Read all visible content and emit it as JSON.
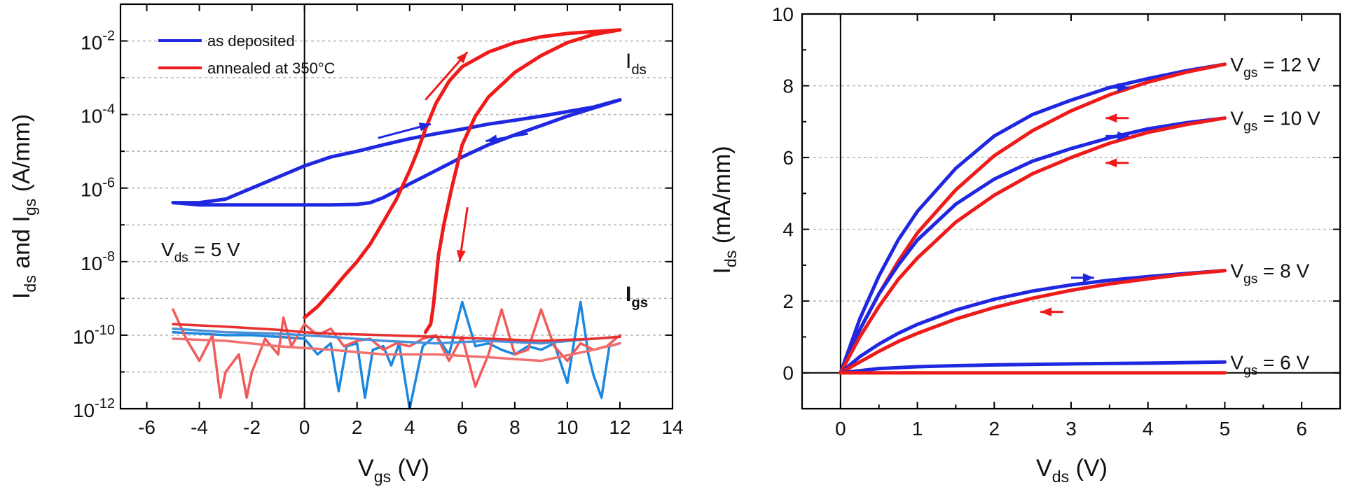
{
  "chart_data": [
    {
      "type": "line",
      "panel": "left",
      "x_label": {
        "main": "V",
        "sub": "gs",
        "unit": " (V)"
      },
      "y_label": {
        "p1": "I",
        "s1": "ds",
        "mid": " and I",
        "s2": "gs",
        "unit": " (A/mm)"
      },
      "y_scale": "log",
      "xlim": [
        -7,
        14
      ],
      "ylim": [
        1e-12,
        0.1
      ],
      "x_ticks": [
        -6,
        -4,
        -2,
        0,
        2,
        4,
        6,
        8,
        10,
        12,
        14
      ],
      "x_tick_labels": [
        "-6",
        "-4",
        "-2",
        "0",
        "2",
        "4",
        "6",
        "8",
        "10",
        "12",
        "14"
      ],
      "y_ticks_exp": [
        -12,
        -10,
        -8,
        -6,
        -4,
        -2
      ],
      "y_tick_labels": [
        "10-12",
        "10-10",
        "10-8",
        "10-6",
        "10-4",
        "10-2"
      ],
      "y_tick_base": "10",
      "y_tick_exps": [
        "-12",
        "-10",
        "-8",
        "-6",
        "-4",
        "-2"
      ],
      "grid": "horizontal dotted",
      "legend": {
        "placement": "top-left",
        "entries": [
          {
            "label": "as deposited",
            "color": "#1f28e0"
          },
          {
            "label": "annealed at 350°C",
            "color": "#ef1a1a"
          }
        ]
      },
      "annotations": {
        "vds": {
          "main": "V",
          "sub": "ds",
          "rest": " = 5 V"
        },
        "ids": {
          "main": "I",
          "sub": "ds"
        },
        "igs": {
          "main": "I",
          "sub": "gs"
        }
      },
      "series": [
        {
          "name": "as deposited",
          "role": "Ids forward",
          "color": "#1f28e0",
          "x": [
            -5,
            -4,
            -3,
            -2,
            -1,
            0,
            1,
            2,
            3,
            4,
            5,
            6,
            7,
            8,
            9,
            10,
            11,
            12
          ],
          "y": [
            4e-07,
            4e-07,
            5e-07,
            1e-06,
            2e-06,
            4e-06,
            7e-06,
            1e-05,
            1.5e-05,
            2.2e-05,
            3e-05,
            4e-05,
            5.5e-05,
            7e-05,
            9e-05,
            0.00012,
            0.00016,
            0.00025
          ]
        },
        {
          "name": "as deposited",
          "role": "Ids reverse",
          "color": "#1f28e0",
          "x": [
            12,
            11,
            10,
            9,
            8,
            7,
            6,
            5,
            4,
            3,
            2.5,
            2,
            1,
            0,
            -1,
            -2,
            -3,
            -4,
            -5
          ],
          "y": [
            0.00025,
            0.00015,
            9e-05,
            5e-05,
            2.8e-05,
            1.5e-05,
            7e-06,
            3e-06,
            1.3e-06,
            5.5e-07,
            4e-07,
            3.6e-07,
            3.5e-07,
            3.5e-07,
            3.5e-07,
            3.5e-07,
            3.5e-07,
            3.5e-07,
            4e-07
          ]
        },
        {
          "name": "annealed at 350°C",
          "role": "Ids forward",
          "color": "#ef1a1a",
          "x": [
            0,
            0.5,
            1,
            1.5,
            2,
            2.5,
            3,
            3.5,
            4,
            4.3,
            4.6,
            5,
            5.5,
            6,
            7,
            8,
            9,
            10,
            11,
            12
          ],
          "y": [
            3e-10,
            6e-10,
            1.5e-09,
            4e-09,
            1e-08,
            3e-08,
            1.2e-07,
            5e-07,
            3e-06,
            1e-05,
            4e-05,
            0.0002,
            0.0008,
            0.002,
            0.005,
            0.009,
            0.013,
            0.016,
            0.018,
            0.02
          ]
        },
        {
          "name": "annealed at 350°C",
          "role": "Ids reverse",
          "color": "#ef1a1a",
          "x": [
            12,
            11,
            10,
            9,
            8,
            7,
            6.5,
            6,
            5.6,
            5.3,
            5.1,
            5,
            4.9,
            4.8,
            4.6
          ],
          "y": [
            0.02,
            0.015,
            0.009,
            0.004,
            0.0014,
            0.0003,
            9e-05,
            1.5e-05,
            1e-06,
            1e-07,
            1.5e-08,
            3e-09,
            6e-10,
            2e-10,
            1.2e-10
          ]
        },
        {
          "name": "as deposited",
          "role": "Igs",
          "color": "#1a88e0",
          "x": [
            -5,
            -4,
            -3,
            -2,
            -1,
            0,
            0.5,
            1,
            1.3,
            1.6,
            2,
            2.3,
            2.6,
            3,
            3.3,
            3.6,
            4,
            4.5,
            5,
            5.5,
            6,
            6.5,
            7,
            7.5,
            8,
            8.5,
            9,
            9.5,
            10,
            10.5,
            10.8,
            11,
            11.3,
            11.6,
            12
          ],
          "y": [
            1.2e-10,
            1.1e-10,
            1e-10,
            1e-10,
            9e-11,
            8e-11,
            3e-11,
            6e-11,
            3e-12,
            5e-11,
            6e-11,
            2e-12,
            4e-11,
            5e-11,
            1.5e-11,
            6e-11,
            1e-12,
            5e-11,
            1e-10,
            3e-11,
            8e-10,
            5e-11,
            6e-11,
            4e-11,
            3e-11,
            5e-11,
            4e-11,
            6e-11,
            5e-12,
            8e-10,
            3e-11,
            8e-12,
            2e-12,
            5e-11,
            6e-11
          ]
        },
        {
          "name": "annealed at 350°C",
          "role": "Igs",
          "color": "#f05a5a",
          "x": [
            -5,
            -4.5,
            -4,
            -3.5,
            -3.2,
            -3,
            -2.5,
            -2.2,
            -2,
            -1.5,
            -1,
            -0.8,
            -0.5,
            0,
            0.5,
            1,
            1.5,
            2,
            2.5,
            3,
            3.5,
            4,
            4.5,
            5,
            5.5,
            6,
            6.5,
            7,
            7.5,
            8,
            8.5,
            9,
            9.5,
            10,
            10.5,
            11,
            11.5,
            12
          ],
          "y": [
            5e-10,
            8e-11,
            2e-11,
            1e-10,
            2e-12,
            1e-11,
            3e-11,
            2e-12,
            1e-11,
            8e-11,
            3e-11,
            3e-10,
            5e-11,
            2e-10,
            1e-10,
            1.5e-10,
            5e-11,
            7e-11,
            8e-11,
            4e-11,
            6e-11,
            5e-11,
            8e-11,
            1e-10,
            2e-11,
            9e-11,
            4e-12,
            3e-11,
            5e-10,
            3e-11,
            4e-11,
            5e-10,
            5e-11,
            2e-11,
            6e-11,
            4e-11,
            5e-11,
            1e-10
          ]
        },
        {
          "name": "as deposited",
          "role": "Igs back",
          "color": "#4a90d8",
          "x": [
            -5,
            -3,
            -1,
            1,
            3,
            5,
            7,
            9,
            11,
            12
          ],
          "y": [
            1.5e-10,
            1.2e-10,
            1.1e-10,
            9e-11,
            7e-11,
            6e-11,
            7e-11,
            6e-11,
            8e-11,
            9e-11
          ]
        },
        {
          "name": "annealed at 350°C",
          "role": "Igs back",
          "color": "#f27070",
          "x": [
            -5,
            -3,
            -1,
            1,
            3,
            5,
            7,
            9,
            11,
            12
          ],
          "y": [
            8e-11,
            7e-11,
            5e-11,
            4e-11,
            3e-11,
            3e-11,
            2.5e-11,
            2e-11,
            4e-11,
            6e-11
          ]
        },
        {
          "name": "annealed at 350°C",
          "role": "Igs back 2",
          "color": "#e83030",
          "x": [
            -5,
            -3,
            -1,
            0,
            1,
            3,
            5,
            7,
            9,
            11,
            12
          ],
          "y": [
            2e-10,
            1.7e-10,
            1.4e-10,
            1.2e-10,
            1.1e-10,
            1e-10,
            9e-11,
            8e-11,
            7e-11,
            8e-11,
            9e-11
          ]
        }
      ],
      "arrows": [
        {
          "color": "#1f28e0",
          "x1": 2.8,
          "y1": 2.3e-05,
          "x2": 4.8,
          "y2": 5.5e-05
        },
        {
          "color": "#1f28e0",
          "x1": 8.5,
          "y1": 3e-05,
          "x2": 6.9,
          "y2": 1.9e-05
        },
        {
          "color": "#ef1a1a",
          "x1": 4.6,
          "y1": 0.00025,
          "x2": 6.2,
          "y2": 0.005
        },
        {
          "color": "#ef1a1a",
          "x1": 6.2,
          "y1": 3e-07,
          "x2": 5.9,
          "y2": 1e-08
        }
      ]
    },
    {
      "type": "line",
      "panel": "right",
      "x_label": {
        "main": "V",
        "sub": "ds",
        "unit": " (V)"
      },
      "y_label": {
        "main": "I",
        "sub": "ds",
        "unit": "  (mA/mm)"
      },
      "xlim": [
        -0.5,
        6.5
      ],
      "ylim": [
        -1,
        10
      ],
      "x_ticks": [
        0,
        1,
        2,
        3,
        4,
        5,
        6
      ],
      "x_tick_labels": [
        "0",
        "1",
        "2",
        "3",
        "4",
        "5",
        "6"
      ],
      "y_ticks": [
        0,
        2,
        4,
        6,
        8,
        10
      ],
      "y_tick_labels": [
        "0",
        "2",
        "4",
        "6",
        "8",
        "10"
      ],
      "grid": "horizontal dotted",
      "curve_labels": [
        {
          "main": "V",
          "sub": "gs",
          "rest": " = 12 V",
          "y": 8.6
        },
        {
          "main": "V",
          "sub": "gs",
          "rest": " = 10 V",
          "y": 7.1
        },
        {
          "main": "V",
          "sub": "gs",
          "rest": " = 8 V",
          "y": 2.85
        },
        {
          "main": "V",
          "sub": "gs",
          "rest": " = 6 V",
          "y": 0.3
        }
      ],
      "series": [
        {
          "name": "Vgs = 12 V forward",
          "color": "#1f28e0",
          "x": [
            0,
            0.25,
            0.5,
            0.75,
            1,
            1.5,
            2,
            2.5,
            3,
            3.5,
            4,
            4.5,
            5
          ],
          "y": [
            0,
            1.5,
            2.7,
            3.7,
            4.5,
            5.7,
            6.6,
            7.2,
            7.6,
            7.95,
            8.2,
            8.42,
            8.6
          ]
        },
        {
          "name": "Vgs = 12 V reverse",
          "color": "#ef1a1a",
          "x": [
            0,
            0.25,
            0.5,
            0.75,
            1,
            1.5,
            2,
            2.5,
            3,
            3.5,
            4,
            4.5,
            5
          ],
          "y": [
            0,
            1.2,
            2.2,
            3.1,
            3.9,
            5.1,
            6.05,
            6.75,
            7.3,
            7.75,
            8.1,
            8.38,
            8.6
          ]
        },
        {
          "name": "Vgs = 10 V forward",
          "color": "#1f28e0",
          "x": [
            0,
            0.25,
            0.5,
            0.75,
            1,
            1.5,
            2,
            2.5,
            3,
            3.5,
            4,
            4.5,
            5
          ],
          "y": [
            0,
            1.2,
            2.2,
            3.0,
            3.7,
            4.7,
            5.4,
            5.9,
            6.25,
            6.55,
            6.8,
            6.97,
            7.1
          ]
        },
        {
          "name": "Vgs = 10 V reverse",
          "color": "#ef1a1a",
          "x": [
            0,
            0.25,
            0.5,
            0.75,
            1,
            1.5,
            2,
            2.5,
            3,
            3.5,
            4,
            4.5,
            5
          ],
          "y": [
            0,
            1.0,
            1.85,
            2.6,
            3.2,
            4.2,
            4.95,
            5.55,
            6.0,
            6.4,
            6.7,
            6.92,
            7.1
          ]
        },
        {
          "name": "Vgs = 8 V forward",
          "color": "#1f28e0",
          "x": [
            0,
            0.25,
            0.5,
            0.75,
            1,
            1.5,
            2,
            2.5,
            3,
            3.5,
            4,
            4.5,
            5
          ],
          "y": [
            0,
            0.45,
            0.8,
            1.1,
            1.35,
            1.75,
            2.05,
            2.28,
            2.45,
            2.58,
            2.68,
            2.77,
            2.85
          ]
        },
        {
          "name": "Vgs = 8 V reverse",
          "color": "#ef1a1a",
          "x": [
            0,
            0.25,
            0.5,
            0.75,
            1,
            1.5,
            2,
            2.5,
            3,
            3.5,
            4,
            4.5,
            5
          ],
          "y": [
            0,
            0.3,
            0.6,
            0.87,
            1.1,
            1.5,
            1.82,
            2.08,
            2.3,
            2.48,
            2.62,
            2.75,
            2.85
          ]
        },
        {
          "name": "Vgs = 6 V forward",
          "color": "#1f28e0",
          "x": [
            0,
            0.5,
            1,
            1.5,
            2,
            3,
            4,
            5
          ],
          "y": [
            0,
            0.12,
            0.17,
            0.2,
            0.22,
            0.25,
            0.27,
            0.3
          ]
        },
        {
          "name": "Vgs = 6 V reverse",
          "color": "#ef1a1a",
          "x": [
            0,
            1,
            2,
            3,
            4,
            5
          ],
          "y": [
            0,
            0,
            0,
            0,
            0,
            0
          ]
        }
      ],
      "arrows": [
        {
          "color": "#1f28e0",
          "x1": 3.45,
          "y1": 7.95,
          "x2": 3.75,
          "y2": 7.95
        },
        {
          "color": "#ef1a1a",
          "x1": 3.75,
          "y1": 7.1,
          "x2": 3.45,
          "y2": 7.1
        },
        {
          "color": "#1f28e0",
          "x1": 3.45,
          "y1": 6.6,
          "x2": 3.75,
          "y2": 6.6
        },
        {
          "color": "#ef1a1a",
          "x1": 3.75,
          "y1": 5.85,
          "x2": 3.45,
          "y2": 5.85
        },
        {
          "color": "#1f28e0",
          "x1": 3.0,
          "y1": 2.65,
          "x2": 3.3,
          "y2": 2.65
        },
        {
          "color": "#ef1a1a",
          "x1": 2.9,
          "y1": 1.7,
          "x2": 2.6,
          "y2": 1.7
        }
      ]
    }
  ]
}
